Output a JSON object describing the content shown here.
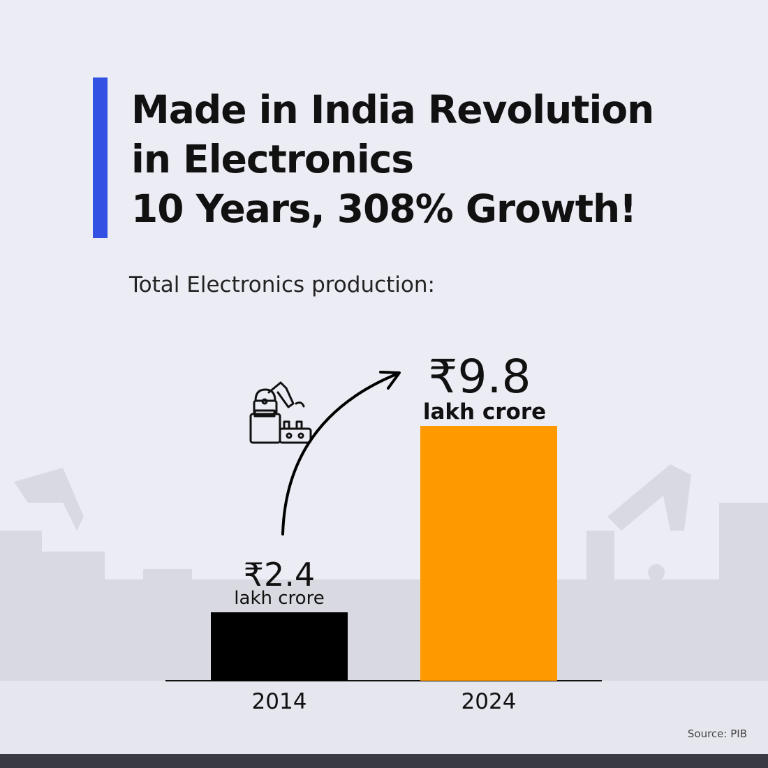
{
  "title_lines": [
    "Made in India Revolution",
    "in Electronics",
    "10 Years, 308% Growth!"
  ],
  "subtitle": "Total Electronics production:",
  "source": "Source: PIB",
  "colors": {
    "accent": "#3352e3",
    "bar_2014": "#000000",
    "bar_2024": "#ff9900",
    "background": "#ececf5"
  },
  "icons": [
    "robot-arm-factory-icon",
    "growth-arrow-icon"
  ],
  "chart_data": {
    "type": "bar",
    "categories": [
      "2014",
      "2024"
    ],
    "values": [
      2.4,
      9.8
    ],
    "value_labels": [
      "₹2.4",
      "₹9.8"
    ],
    "unit_label": "lakh crore",
    "title": "Total Electronics production:",
    "xlabel": "",
    "ylabel": "",
    "grid": false,
    "colors": [
      "#000000",
      "#ff9900"
    ]
  }
}
